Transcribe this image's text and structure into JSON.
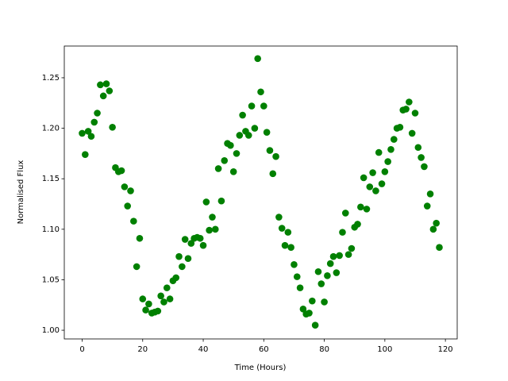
{
  "chart_data": {
    "type": "scatter",
    "x_label": "Time (Hours)",
    "y_label": "Normalised Flux",
    "color": "#008000",
    "x": [
      0,
      1,
      2,
      3,
      4,
      5,
      6,
      7,
      8,
      9,
      10,
      11,
      12,
      13,
      14,
      15,
      16,
      17,
      18,
      19,
      20,
      21,
      22,
      23,
      24,
      25,
      26,
      27,
      28,
      29,
      30,
      31,
      32,
      33,
      34,
      35,
      36,
      37,
      38,
      39,
      40,
      41,
      42,
      43,
      44,
      45,
      46,
      47,
      48,
      49,
      50,
      51,
      52,
      53,
      54,
      55,
      56,
      57,
      58,
      59,
      60,
      61,
      62,
      63,
      64,
      65,
      66,
      67,
      68,
      69,
      70,
      71,
      72,
      73,
      74,
      75,
      76,
      77,
      78,
      79,
      80,
      81,
      82,
      83,
      84,
      85,
      86,
      87,
      88,
      89,
      90,
      91,
      92,
      93,
      94,
      95,
      96,
      97,
      98,
      99,
      100,
      101,
      102,
      103,
      104,
      105,
      106,
      107,
      108,
      109,
      110,
      111,
      112,
      113,
      114,
      115,
      116,
      117,
      118
    ],
    "values": [
      1.195,
      1.174,
      1.197,
      1.192,
      1.206,
      1.215,
      1.243,
      1.232,
      1.244,
      1.237,
      1.201,
      1.161,
      1.157,
      1.158,
      1.142,
      1.123,
      1.138,
      1.108,
      1.063,
      1.091,
      1.031,
      1.02,
      1.026,
      1.017,
      1.018,
      1.019,
      1.034,
      1.028,
      1.042,
      1.031,
      1.049,
      1.052,
      1.073,
      1.063,
      1.09,
      1.071,
      1.086,
      1.091,
      1.092,
      1.091,
      1.084,
      1.127,
      1.099,
      1.112,
      1.1,
      1.16,
      1.128,
      1.168,
      1.185,
      1.183,
      1.157,
      1.175,
      1.193,
      1.213,
      1.197,
      1.193,
      1.222,
      1.2,
      1.269,
      1.236,
      1.222,
      1.196,
      1.178,
      1.155,
      1.172,
      1.112,
      1.101,
      1.084,
      1.097,
      1.082,
      1.065,
      1.053,
      1.042,
      1.021,
      1.016,
      1.017,
      1.029,
      1.005,
      1.058,
      1.046,
      1.028,
      1.054,
      1.066,
      1.073,
      1.057,
      1.074,
      1.097,
      1.116,
      1.075,
      1.081,
      1.102,
      1.105,
      1.122,
      1.151,
      1.12,
      1.142,
      1.156,
      1.138,
      1.176,
      1.145,
      1.157,
      1.167,
      1.179,
      1.189,
      1.2,
      1.201,
      1.218,
      1.219,
      1.226,
      1.195,
      1.215,
      1.181,
      1.171,
      1.162,
      1.123,
      1.135,
      1.1,
      1.106,
      1.082
    ],
    "xlim": [
      -5.9,
      123.9
    ],
    "xticks": [
      0,
      20,
      40,
      60,
      80,
      100,
      120
    ],
    "ylim": [
      0.9914,
      1.2814
    ],
    "yticks": [
      {
        "value": 1.0,
        "label": "1.00"
      },
      1.05,
      {
        "value": 1.1,
        "label": "1.10"
      },
      1.15,
      {
        "value": 1.2,
        "label": "1.20"
      },
      1.25
    ]
  }
}
